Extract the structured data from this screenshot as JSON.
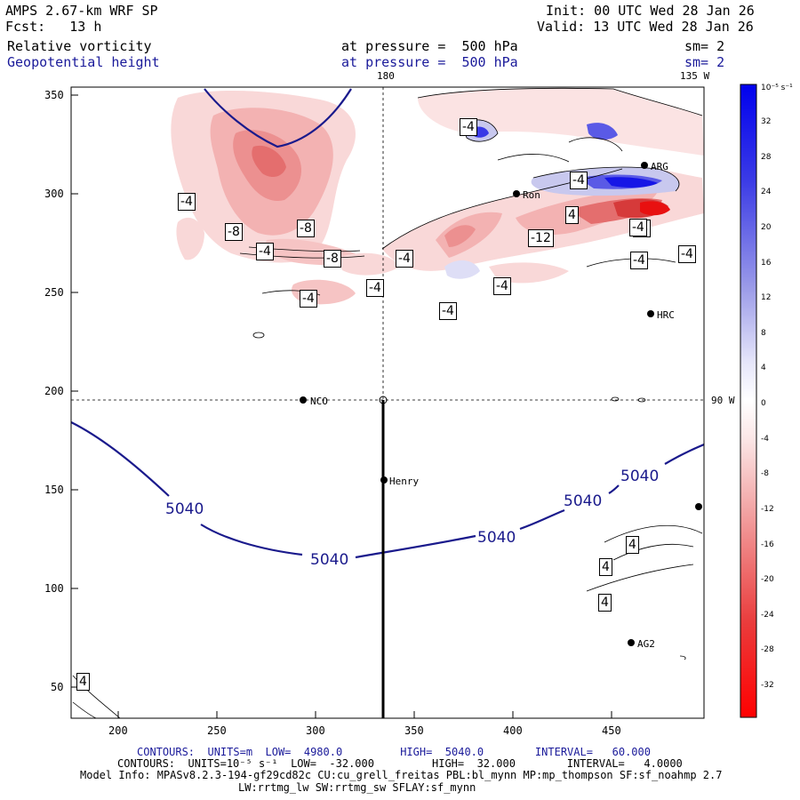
{
  "header": {
    "model": "AMPS 2.67-km WRF SP",
    "fcst": "Fcst:   13 h",
    "init": "Init: 00 UTC Wed 28 Jan 26",
    "valid": "Valid: 13 UTC Wed 28 Jan 26",
    "field1": "Relative vorticity",
    "field2": "Geopotential height",
    "pressure1": "at pressure =  500 hPa",
    "pressure2": "at pressure =  500 hPa",
    "sm1": "sm= 2",
    "sm2": "sm= 2"
  },
  "map_labels": {
    "lon_180": "180",
    "lon_135": "135 W",
    "lon_90": "90 W"
  },
  "stations": [
    {
      "name": "NCO"
    },
    {
      "name": "Henry"
    },
    {
      "name": "HRC"
    },
    {
      "name": "AG2"
    },
    {
      "name": "Ron"
    },
    {
      "name": "ARG"
    }
  ],
  "contour_labels": {
    "height": [
      "5040",
      "5040",
      "5040",
      "5040",
      "5040"
    ],
    "vort": [
      "-4",
      "-4",
      "-8",
      "-8",
      "-4",
      "-8",
      "-4",
      "-4",
      "-4",
      "-4",
      "-4",
      "-12",
      "-4",
      "-4",
      "-4",
      "-4",
      "4",
      "4",
      "4",
      "4",
      "4",
      "-4"
    ]
  },
  "axes": {
    "x_ticks": [
      "200",
      "250",
      "300",
      "350",
      "400",
      "450"
    ],
    "y_ticks": [
      "350",
      "300",
      "250",
      "200",
      "150",
      "100",
      "50"
    ]
  },
  "colorbar": {
    "unit": "10⁻⁵ s⁻¹",
    "ticks": [
      "32",
      "28",
      "24",
      "20",
      "16",
      "12",
      "8",
      "4",
      "0",
      "-4",
      "-8",
      "-12",
      "-16",
      "-20",
      "-24",
      "-28",
      "-32"
    ]
  },
  "footer": {
    "line1": "CONTOURS:  UNITS=m  LOW=  4980.0         HIGH=  5040.0        INTERVAL=   60.000",
    "line2": "CONTOURS:  UNITS=10⁻⁵ s⁻¹  LOW=  -32.000         HIGH=  32.000        INTERVAL=   4.0000",
    "line3": "Model Info: MPASv8.2.3-194-gf29cd82c CU:cu_grell_freitas PBL:bl_mynn MP:mp_thompson SF:sf_noahmp 2.7",
    "line4": "LW:rrtmg_lw SW:rrtmg_sw SFLAY:sf_mynn"
  }
}
